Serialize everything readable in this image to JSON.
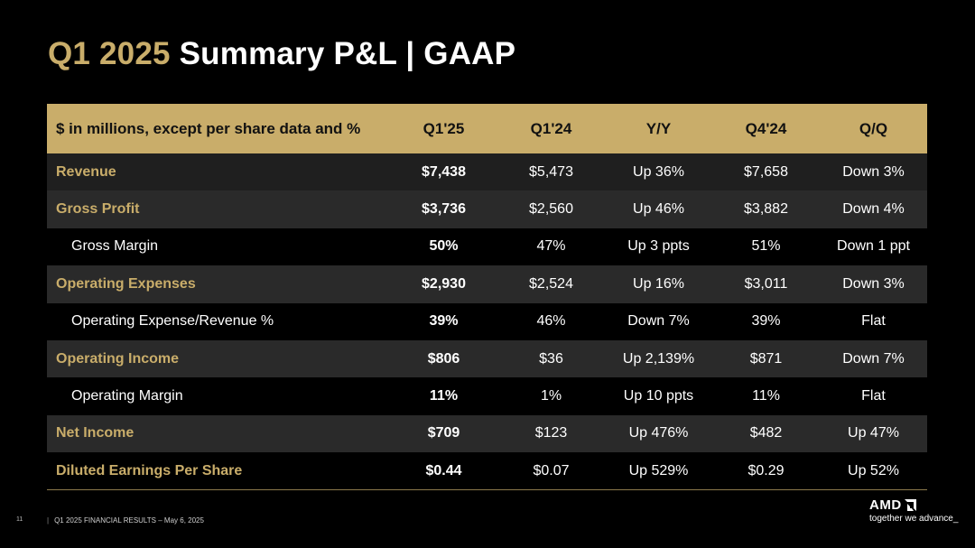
{
  "title": {
    "accent": "Q1 2025",
    "rest": "Summary P&L  |  GAAP"
  },
  "table": {
    "headers": [
      "$ in millions, except per share data and %",
      "Q1'25",
      "Q1'24",
      "Y/Y",
      "Q4'24",
      "Q/Q"
    ],
    "rows": [
      {
        "label": "Revenue",
        "cells": [
          "$7,438",
          "$5,473",
          "Up 36%",
          "$7,658",
          "Down 3%"
        ]
      },
      {
        "label": "Gross Profit",
        "cells": [
          "$3,736",
          "$2,560",
          "Up 46%",
          "$3,882",
          "Down 4%"
        ]
      },
      {
        "label": "Gross Margin",
        "cells": [
          "50%",
          "47%",
          "Up 3 ppts",
          "51%",
          "Down 1 ppt"
        ]
      },
      {
        "label": "Operating Expenses",
        "cells": [
          "$2,930",
          "$2,524",
          "Up 16%",
          "$3,011",
          "Down 3%"
        ]
      },
      {
        "label": "Operating Expense/Revenue %",
        "cells": [
          "39%",
          "46%",
          "Down 7%",
          "39%",
          "Flat"
        ]
      },
      {
        "label": "Operating Income",
        "cells": [
          "$806",
          "$36",
          "Up 2,139%",
          "$871",
          "Down 7%"
        ]
      },
      {
        "label": "Operating Margin",
        "cells": [
          "11%",
          "1%",
          "Up 10 ppts",
          "11%",
          "Flat"
        ]
      },
      {
        "label": "Net Income",
        "cells": [
          "$709",
          "$123",
          "Up 476%",
          "$482",
          "Up 47%"
        ]
      },
      {
        "label": "Diluted Earnings Per Share",
        "cells": [
          "$0.44",
          "$0.07",
          "Up 529%",
          "$0.29",
          "Up 52%"
        ]
      }
    ]
  },
  "footer": {
    "page_number": "11",
    "text": "Q1 2025 FINANCIAL RESULTS – May 6, 2025"
  },
  "logo": {
    "wordmark": "AMD",
    "tagline": "together we advance_"
  },
  "colors": {
    "accent_gold": "#c9ad6a",
    "background": "#000000",
    "row_shade": "#1f1f1f",
    "highlight_column": "#5e5e5e"
  }
}
